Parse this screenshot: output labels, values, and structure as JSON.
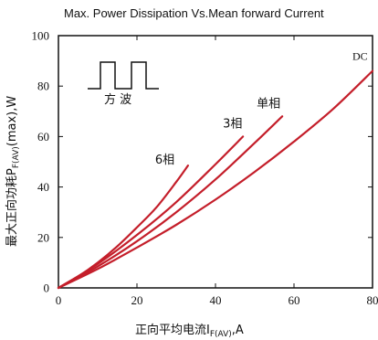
{
  "chart_data": {
    "type": "line",
    "title": "Max. Power Dissipation Vs.Mean forward Current",
    "xlabel": {
      "main": "正向平均电流I",
      "sub": "F(AV)",
      "suffix": ",A"
    },
    "ylabel": {
      "main": "最大正向功耗P",
      "sub": "F(AV)",
      "suffix": "(max),W"
    },
    "xlim": [
      0,
      80
    ],
    "ylim": [
      0,
      100
    ],
    "xticks": [
      0,
      20,
      40,
      60,
      80
    ],
    "yticks": [
      0,
      20,
      40,
      60,
      80,
      100
    ],
    "xtick_labels": [
      "0",
      "20",
      "40",
      "60",
      "80"
    ],
    "ytick_labels": [
      "0",
      "20",
      "40",
      "60",
      "80",
      "100"
    ],
    "grid": false,
    "line_color": "#c41e2a",
    "waveform_label": "方 波",
    "series": [
      {
        "name": "6相",
        "x": [
          0,
          5,
          10,
          15,
          20,
          25,
          30,
          33
        ],
        "y": [
          0,
          4.5,
          10,
          16.5,
          24,
          32,
          42,
          48.5
        ]
      },
      {
        "name": "3相",
        "x": [
          0,
          10,
          20,
          30,
          40,
          47
        ],
        "y": [
          0,
          9.5,
          21,
          34,
          49,
          60
        ]
      },
      {
        "name": "单相",
        "x": [
          0,
          10,
          20,
          30,
          40,
          50,
          57
        ],
        "y": [
          0,
          8.5,
          18.5,
          30,
          43,
          57.5,
          68
        ]
      },
      {
        "name": "DC",
        "x": [
          0,
          10,
          20,
          30,
          40,
          50,
          60,
          70,
          80
        ],
        "y": [
          0,
          7.5,
          16,
          25,
          35,
          46,
          58,
          71,
          86
        ]
      }
    ]
  }
}
